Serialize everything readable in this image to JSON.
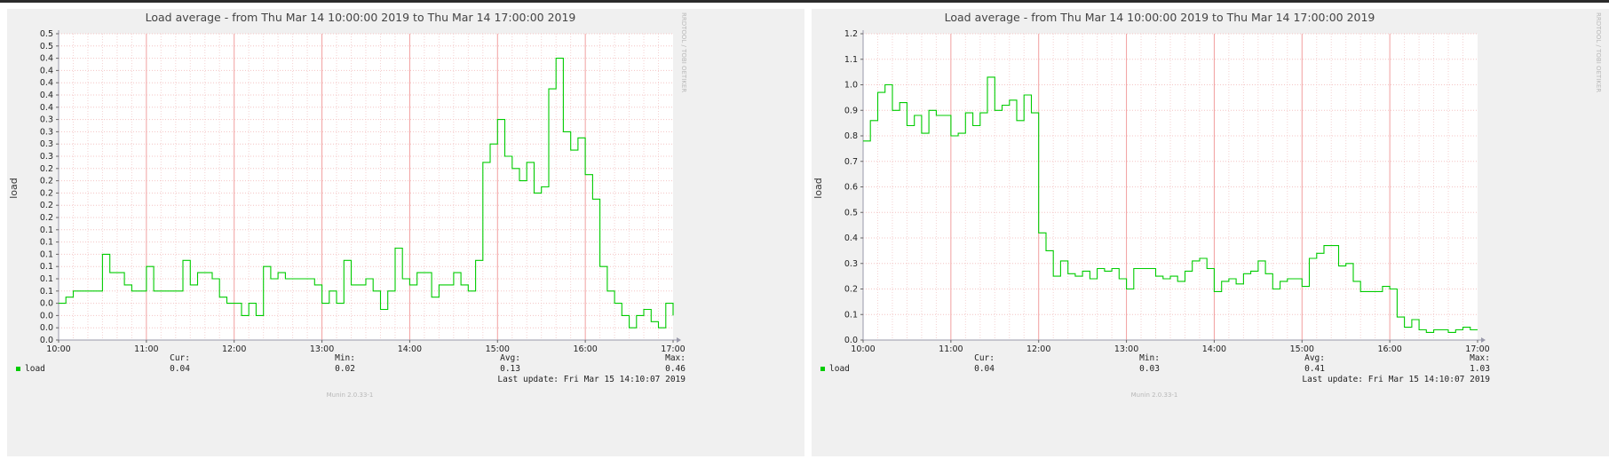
{
  "chart_data": [
    {
      "type": "line",
      "title": "Load average - from Thu Mar 14 10:00:00 2019 to Thu Mar 14 17:00:00 2019",
      "ylabel": "load",
      "watermark": "RRDTOOL / TOBI OETIKER",
      "footer": "Munin 2.0.33-1",
      "x_ticks": [
        "10:00",
        "11:00",
        "12:00",
        "13:00",
        "14:00",
        "15:00",
        "16:00",
        "17:00"
      ],
      "y_ticks": [
        "0.0",
        "0.0",
        "0.0",
        "0.0",
        "0.1",
        "0.1",
        "0.1",
        "0.1",
        "0.1",
        "0.1",
        "0.2",
        "0.2",
        "0.2",
        "0.2",
        "0.2",
        "0.3",
        "0.3",
        "0.3",
        "0.3",
        "0.4",
        "0.4",
        "0.4",
        "0.4",
        "0.4",
        "0.5",
        "0.5"
      ],
      "ylim": [
        0,
        0.5
      ],
      "xlim": [
        "10:00",
        "17:00"
      ],
      "series": [
        {
          "name": "load",
          "color": "#00cc00",
          "x": [
            "10:00",
            "10:05",
            "10:10",
            "10:15",
            "10:20",
            "10:25",
            "10:30",
            "10:35",
            "10:40",
            "10:45",
            "10:50",
            "10:55",
            "11:00",
            "11:05",
            "11:10",
            "11:15",
            "11:20",
            "11:25",
            "11:30",
            "11:35",
            "11:40",
            "11:45",
            "11:50",
            "11:55",
            "12:00",
            "12:05",
            "12:10",
            "12:15",
            "12:20",
            "12:25",
            "12:30",
            "12:35",
            "12:40",
            "12:45",
            "12:50",
            "12:55",
            "13:00",
            "13:05",
            "13:10",
            "13:15",
            "13:20",
            "13:25",
            "13:30",
            "13:35",
            "13:40",
            "13:45",
            "13:50",
            "13:55",
            "14:00",
            "14:05",
            "14:10",
            "14:15",
            "14:20",
            "14:25",
            "14:30",
            "14:35",
            "14:40",
            "14:45",
            "14:50",
            "14:55",
            "15:00",
            "15:05",
            "15:10",
            "15:15",
            "15:20",
            "15:25",
            "15:30",
            "15:35",
            "15:40",
            "15:45",
            "15:50",
            "15:55",
            "16:00",
            "16:05",
            "16:10",
            "16:15",
            "16:20",
            "16:25",
            "16:30",
            "16:35",
            "16:40",
            "16:45",
            "16:50",
            "16:55",
            "17:00"
          ],
          "values": [
            0.06,
            0.07,
            0.08,
            0.08,
            0.08,
            0.08,
            0.14,
            0.11,
            0.11,
            0.09,
            0.08,
            0.08,
            0.12,
            0.08,
            0.08,
            0.08,
            0.08,
            0.13,
            0.09,
            0.11,
            0.11,
            0.1,
            0.07,
            0.06,
            0.06,
            0.04,
            0.06,
            0.04,
            0.12,
            0.1,
            0.11,
            0.1,
            0.1,
            0.1,
            0.1,
            0.09,
            0.06,
            0.08,
            0.06,
            0.13,
            0.09,
            0.09,
            0.1,
            0.08,
            0.05,
            0.08,
            0.15,
            0.1,
            0.09,
            0.11,
            0.11,
            0.07,
            0.09,
            0.09,
            0.11,
            0.09,
            0.08,
            0.13,
            0.29,
            0.32,
            0.36,
            0.3,
            0.28,
            0.26,
            0.29,
            0.24,
            0.25,
            0.41,
            0.46,
            0.34,
            0.31,
            0.33,
            0.27,
            0.23,
            0.12,
            0.08,
            0.06,
            0.04,
            0.02,
            0.04,
            0.05,
            0.03,
            0.02,
            0.06,
            0.04
          ]
        }
      ],
      "legend": {
        "label": "load",
        "cur_label": "Cur:",
        "cur": "0.04",
        "min_label": "Min:",
        "min": "0.02",
        "avg_label": "Avg:",
        "avg": "0.13",
        "max_label": "Max:",
        "max": "0.46"
      },
      "last_update": "Last update: Fri Mar 15 14:10:07 2019"
    },
    {
      "type": "line",
      "title": "Load average - from Thu Mar 14 10:00:00 2019 to Thu Mar 14 17:00:00 2019",
      "ylabel": "load",
      "watermark": "RRDTOOL / TOBI OETIKER",
      "footer": "Munin 2.0.33-1",
      "x_ticks": [
        "10:00",
        "11:00",
        "12:00",
        "13:00",
        "14:00",
        "15:00",
        "16:00",
        "17:00"
      ],
      "y_ticks": [
        "0.0",
        "0.1",
        "0.2",
        "0.3",
        "0.4",
        "0.5",
        "0.6",
        "0.7",
        "0.8",
        "0.9",
        "1.0",
        "1.1",
        "1.2"
      ],
      "ylim": [
        0,
        1.2
      ],
      "xlim": [
        "10:00",
        "17:00"
      ],
      "series": [
        {
          "name": "load",
          "color": "#00cc00",
          "x": [
            "10:00",
            "10:05",
            "10:10",
            "10:15",
            "10:20",
            "10:25",
            "10:30",
            "10:35",
            "10:40",
            "10:45",
            "10:50",
            "10:55",
            "11:00",
            "11:05",
            "11:10",
            "11:15",
            "11:20",
            "11:25",
            "11:30",
            "11:35",
            "11:40",
            "11:45",
            "11:50",
            "11:55",
            "12:00",
            "12:05",
            "12:10",
            "12:15",
            "12:20",
            "12:25",
            "12:30",
            "12:35",
            "12:40",
            "12:45",
            "12:50",
            "12:55",
            "13:00",
            "13:05",
            "13:10",
            "13:15",
            "13:20",
            "13:25",
            "13:30",
            "13:35",
            "13:40",
            "13:45",
            "13:50",
            "13:55",
            "14:00",
            "14:05",
            "14:10",
            "14:15",
            "14:20",
            "14:25",
            "14:30",
            "14:35",
            "14:40",
            "14:45",
            "14:50",
            "14:55",
            "15:00",
            "15:05",
            "15:10",
            "15:15",
            "15:20",
            "15:25",
            "15:30",
            "15:35",
            "15:40",
            "15:45",
            "15:50",
            "15:55",
            "16:00",
            "16:05",
            "16:10",
            "16:15",
            "16:20",
            "16:25",
            "16:30",
            "16:35",
            "16:40",
            "16:45",
            "16:50",
            "16:55",
            "17:00"
          ],
          "values": [
            0.78,
            0.86,
            0.97,
            1.0,
            0.9,
            0.93,
            0.84,
            0.88,
            0.81,
            0.9,
            0.88,
            0.88,
            0.8,
            0.81,
            0.89,
            0.84,
            0.89,
            1.03,
            0.9,
            0.92,
            0.94,
            0.86,
            0.96,
            0.89,
            0.42,
            0.35,
            0.25,
            0.31,
            0.26,
            0.25,
            0.27,
            0.24,
            0.28,
            0.27,
            0.28,
            0.24,
            0.2,
            0.28,
            0.28,
            0.28,
            0.25,
            0.24,
            0.25,
            0.23,
            0.27,
            0.31,
            0.32,
            0.28,
            0.19,
            0.23,
            0.24,
            0.22,
            0.26,
            0.27,
            0.31,
            0.26,
            0.2,
            0.23,
            0.24,
            0.24,
            0.21,
            0.32,
            0.34,
            0.37,
            0.37,
            0.29,
            0.3,
            0.23,
            0.19,
            0.19,
            0.19,
            0.21,
            0.2,
            0.09,
            0.05,
            0.08,
            0.04,
            0.03,
            0.04,
            0.04,
            0.03,
            0.04,
            0.05,
            0.04,
            0.04
          ]
        }
      ],
      "legend": {
        "label": "load",
        "cur_label": "Cur:",
        "cur": "0.04",
        "min_label": "Min:",
        "min": "0.03",
        "avg_label": "Avg:",
        "avg": "0.41",
        "max_label": "Max:",
        "max": "1.03"
      },
      "last_update": "Last update: Fri Mar 15 14:10:07 2019"
    }
  ]
}
